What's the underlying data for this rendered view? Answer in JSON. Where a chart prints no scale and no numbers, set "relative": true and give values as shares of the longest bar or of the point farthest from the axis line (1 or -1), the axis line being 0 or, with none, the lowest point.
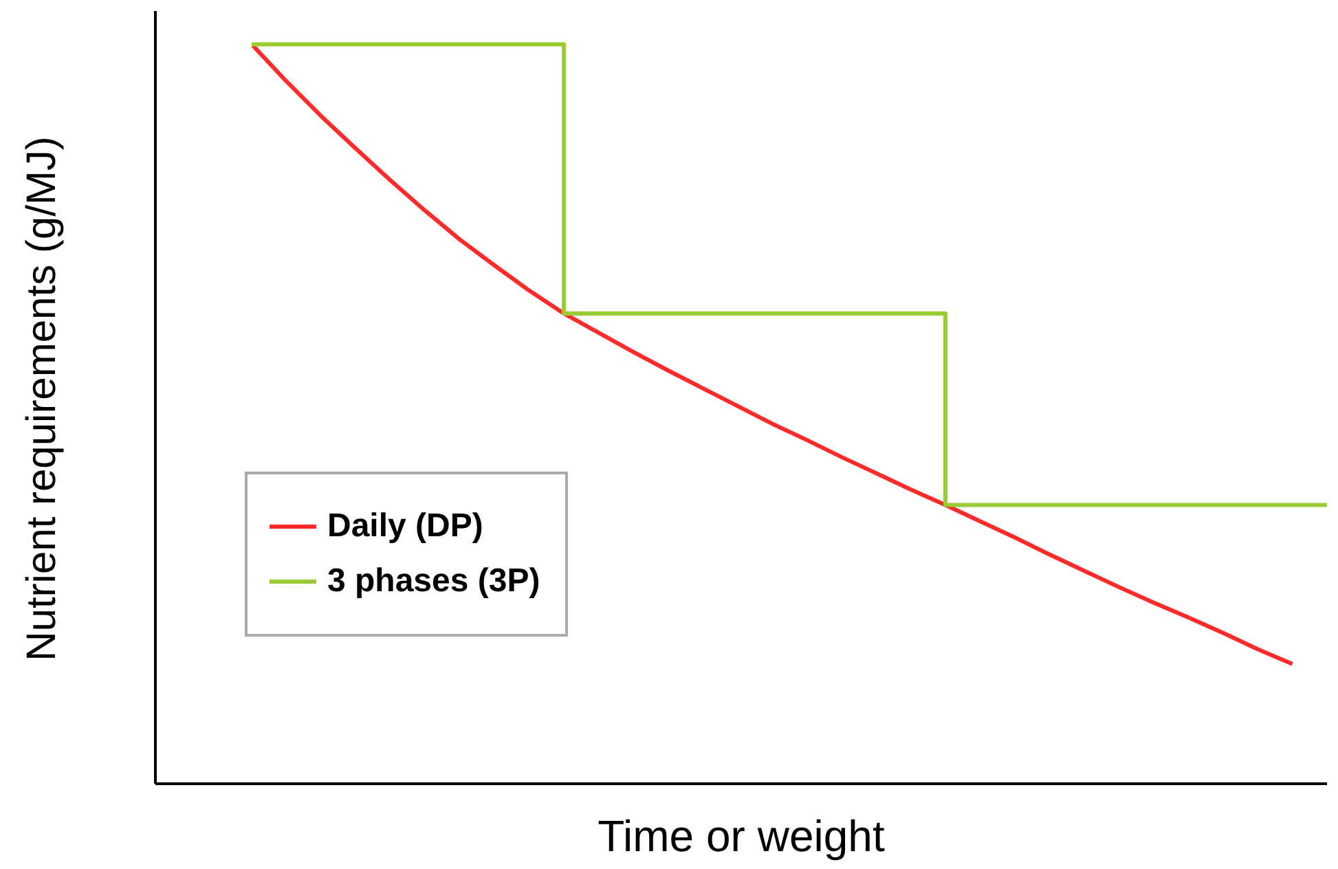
{
  "chart_data": {
    "type": "line",
    "relative": true,
    "xlabel": "Time or weight",
    "ylabel": "Nutrient requirements (g/MJ)",
    "legend": "left",
    "marker": "none",
    "categories": [
      null,
      null,
      null,
      null,
      null,
      null,
      null,
      null,
      null,
      null,
      null,
      null,
      null,
      null,
      null,
      null,
      null,
      null,
      null,
      null,
      null,
      null,
      null,
      null,
      null,
      null,
      null,
      null,
      null,
      null,
      null,
      null
    ],
    "series": [
      {
        "name": "Daily (DP)",
        "color": "#ff2a2a",
        "type": "line",
        "values": [
          1.0,
          0.95,
          0.903,
          0.859,
          0.816,
          0.775,
          0.736,
          0.701,
          0.667,
          0.636,
          0.61,
          0.584,
          0.559,
          0.535,
          0.511,
          0.487,
          0.465,
          0.442,
          0.42,
          0.398,
          0.377,
          0.355,
          0.333,
          0.31,
          0.288,
          0.266,
          0.245,
          0.225,
          0.204,
          0.182,
          0.162,
          null
        ]
      },
      {
        "name": "3 phases (3P)",
        "color": "#99cc33",
        "type": "step",
        "values": [
          1,
          1,
          1,
          1,
          1,
          1,
          1,
          1,
          1,
          0.636,
          0.636,
          0.636,
          0.636,
          0.636,
          0.636,
          0.636,
          0.636,
          0.636,
          0.636,
          0.636,
          0.377,
          0.377,
          0.377,
          0.377,
          0.377,
          0.377,
          0.377,
          0.377,
          0.377,
          0.377,
          0.377,
          0.377
        ]
      }
    ]
  }
}
